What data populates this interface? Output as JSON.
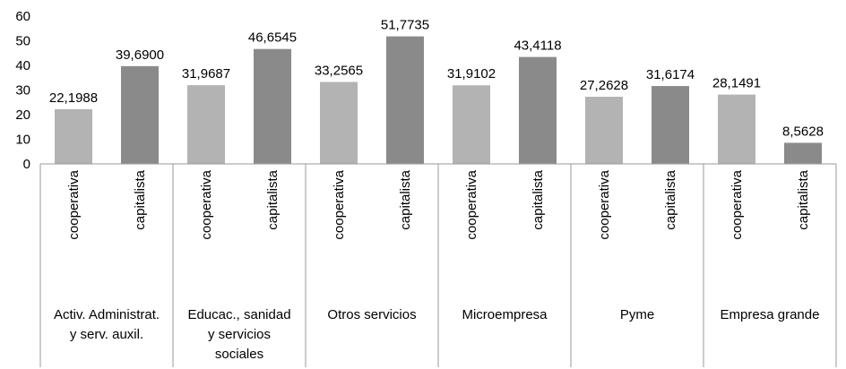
{
  "chart_data": {
    "type": "bar",
    "ylim": [
      0,
      60
    ],
    "yticks": [
      "0",
      "10",
      "20",
      "30",
      "40",
      "50",
      "60"
    ],
    "colors": {
      "cooperativa": "#b3b3b3",
      "capitalista": "#8a8a8a"
    },
    "groups": [
      {
        "label_lines": [
          "Activ. Administrat.",
          "y serv. auxil."
        ],
        "bars": [
          {
            "category": "cooperativa",
            "value": 22.1988,
            "label": "22,1988"
          },
          {
            "category": "capitalista",
            "value": 39.69,
            "label": "39,6900"
          }
        ]
      },
      {
        "label_lines": [
          "Educac., sanidad",
          "y servicios",
          "sociales"
        ],
        "bars": [
          {
            "category": "cooperativa",
            "value": 31.9687,
            "label": "31,9687"
          },
          {
            "category": "capitalista",
            "value": 46.6545,
            "label": "46,6545"
          }
        ]
      },
      {
        "label_lines": [
          "Otros servicios"
        ],
        "bars": [
          {
            "category": "cooperativa",
            "value": 33.2565,
            "label": "33,2565"
          },
          {
            "category": "capitalista",
            "value": 51.7735,
            "label": "51,7735"
          }
        ]
      },
      {
        "label_lines": [
          "Microempresa"
        ],
        "bars": [
          {
            "category": "cooperativa",
            "value": 31.9102,
            "label": "31,9102"
          },
          {
            "category": "capitalista",
            "value": 43.4118,
            "label": "43,4118"
          }
        ]
      },
      {
        "label_lines": [
          "Pyme"
        ],
        "bars": [
          {
            "category": "cooperativa",
            "value": 27.2628,
            "label": "27,2628"
          },
          {
            "category": "capitalista",
            "value": 31.6174,
            "label": "31,6174"
          }
        ]
      },
      {
        "label_lines": [
          "Empresa grande"
        ],
        "bars": [
          {
            "category": "cooperativa",
            "value": 28.1491,
            "label": "28,1491"
          },
          {
            "category": "capitalista",
            "value": 8.5628,
            "label": "8,5628"
          }
        ]
      }
    ]
  }
}
